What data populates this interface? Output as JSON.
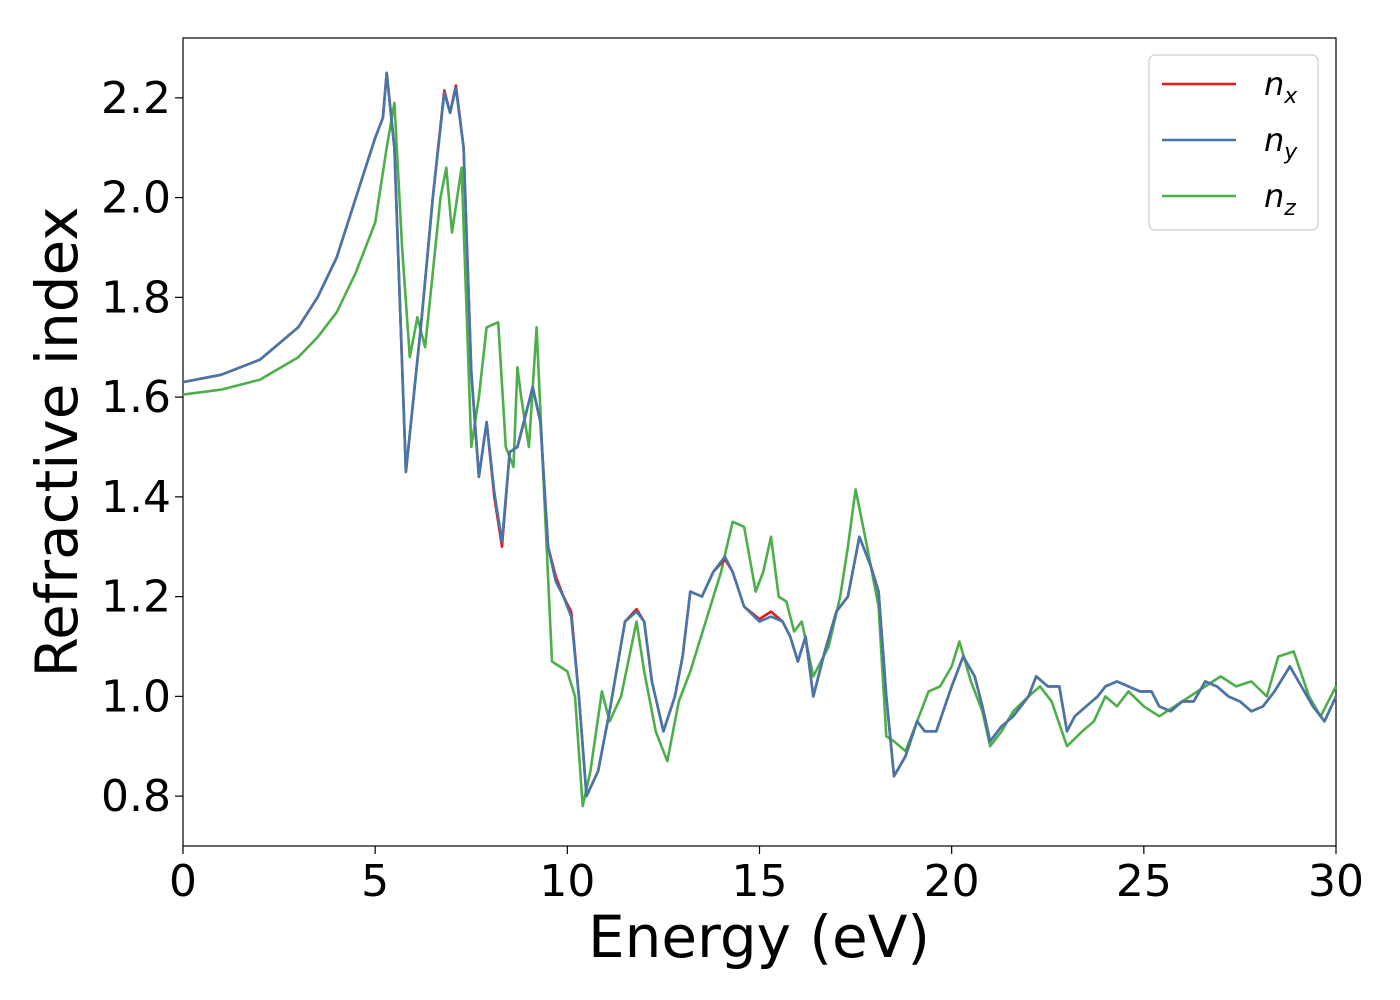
{
  "chart_data": {
    "type": "line",
    "xlabel": "Energy (eV)",
    "ylabel": "Refractive index",
    "xlim": [
      0,
      30
    ],
    "ylim": [
      0.7,
      2.32
    ],
    "xticks": [
      0,
      5,
      10,
      15,
      20,
      25,
      30
    ],
    "xtick_labels": [
      "0",
      "5",
      "10",
      "15",
      "20",
      "25",
      "30"
    ],
    "yticks": [
      0.8,
      1.0,
      1.2,
      1.4,
      1.6,
      1.8,
      2.0,
      2.2
    ],
    "ytick_labels": [
      "0.8",
      "1.0",
      "1.2",
      "1.4",
      "1.6",
      "1.8",
      "2.0",
      "2.2"
    ],
    "grid": false,
    "legend_position": "top-right",
    "series": [
      {
        "name": "n_x",
        "label_base": "n",
        "label_sub": "x",
        "color": "#e41a1c",
        "x": [
          0,
          1,
          2,
          3,
          3.5,
          4,
          4.5,
          5.0,
          5.2,
          5.3,
          5.5,
          5.8,
          6.0,
          6.2,
          6.5,
          6.8,
          6.95,
          7.1,
          7.3,
          7.5,
          7.7,
          7.9,
          8.1,
          8.3,
          8.5,
          8.7,
          8.9,
          9.1,
          9.3,
          9.5,
          9.7,
          9.9,
          10.1,
          10.3,
          10.5,
          10.8,
          11.1,
          11.5,
          11.8,
          12.0,
          12.2,
          12.5,
          12.8,
          13.0,
          13.2,
          13.5,
          13.8,
          14.1,
          14.3,
          14.6,
          15.0,
          15.3,
          15.6,
          15.8,
          16.0,
          16.2,
          16.4,
          16.7,
          17.0,
          17.3,
          17.6,
          17.9,
          18.1,
          18.3,
          18.5,
          18.8,
          19.1,
          19.3,
          19.6,
          20.0,
          20.3,
          20.6,
          20.8,
          21.0,
          21.3,
          21.6,
          22.0,
          22.2,
          22.5,
          22.8,
          23.0,
          23.2,
          23.5,
          23.8,
          24.0,
          24.3,
          24.6,
          24.9,
          25.2,
          25.4,
          25.7,
          26.0,
          26.3,
          26.6,
          26.9,
          27.2,
          27.5,
          27.8,
          28.1,
          28.4,
          28.8,
          29.1,
          29.4,
          29.7,
          30.0
        ],
        "y": [
          1.63,
          1.645,
          1.675,
          1.74,
          1.8,
          1.88,
          2.0,
          2.12,
          2.16,
          2.25,
          2.1,
          1.45,
          1.6,
          1.75,
          2.0,
          2.215,
          2.17,
          2.225,
          2.1,
          1.65,
          1.44,
          1.55,
          1.4,
          1.3,
          1.49,
          1.5,
          1.56,
          1.62,
          1.55,
          1.3,
          1.24,
          1.2,
          1.17,
          1.0,
          0.8,
          0.85,
          0.97,
          1.15,
          1.175,
          1.15,
          1.03,
          0.93,
          1.0,
          1.08,
          1.21,
          1.2,
          1.25,
          1.275,
          1.25,
          1.18,
          1.155,
          1.17,
          1.15,
          1.12,
          1.07,
          1.12,
          1.0,
          1.09,
          1.17,
          1.2,
          1.32,
          1.26,
          1.21,
          1.0,
          0.84,
          0.88,
          0.95,
          0.93,
          0.93,
          1.02,
          1.08,
          1.04,
          0.98,
          0.91,
          0.94,
          0.96,
          1.0,
          1.04,
          1.02,
          1.02,
          0.93,
          0.96,
          0.98,
          1.0,
          1.02,
          1.03,
          1.02,
          1.01,
          1.01,
          0.98,
          0.97,
          0.99,
          0.99,
          1.03,
          1.02,
          1.0,
          0.99,
          0.97,
          0.98,
          1.01,
          1.06,
          1.02,
          0.98,
          0.95,
          1.0
        ]
      },
      {
        "name": "n_y",
        "label_base": "n",
        "label_sub": "y",
        "color": "#4477aa",
        "x": [
          0,
          1,
          2,
          3,
          3.5,
          4,
          4.5,
          5.0,
          5.2,
          5.3,
          5.5,
          5.8,
          6.0,
          6.2,
          6.5,
          6.8,
          6.95,
          7.1,
          7.3,
          7.5,
          7.7,
          7.9,
          8.1,
          8.3,
          8.5,
          8.7,
          8.9,
          9.1,
          9.3,
          9.5,
          9.7,
          9.9,
          10.1,
          10.3,
          10.5,
          10.8,
          11.1,
          11.5,
          11.8,
          12.0,
          12.2,
          12.5,
          12.8,
          13.0,
          13.2,
          13.5,
          13.8,
          14.1,
          14.3,
          14.6,
          15.0,
          15.3,
          15.6,
          15.8,
          16.0,
          16.2,
          16.4,
          16.7,
          17.0,
          17.3,
          17.6,
          17.9,
          18.1,
          18.3,
          18.5,
          18.8,
          19.1,
          19.3,
          19.6,
          20.0,
          20.3,
          20.6,
          20.8,
          21.0,
          21.3,
          21.6,
          22.0,
          22.2,
          22.5,
          22.8,
          23.0,
          23.2,
          23.5,
          23.8,
          24.0,
          24.3,
          24.6,
          24.9,
          25.2,
          25.4,
          25.7,
          26.0,
          26.3,
          26.6,
          26.9,
          27.2,
          27.5,
          27.8,
          28.1,
          28.4,
          28.8,
          29.1,
          29.4,
          29.7,
          30.0
        ],
        "y": [
          1.63,
          1.645,
          1.675,
          1.74,
          1.8,
          1.88,
          2.0,
          2.12,
          2.16,
          2.25,
          2.1,
          1.45,
          1.6,
          1.75,
          2.0,
          2.21,
          2.17,
          2.22,
          2.1,
          1.65,
          1.44,
          1.55,
          1.41,
          1.31,
          1.49,
          1.5,
          1.56,
          1.62,
          1.55,
          1.3,
          1.23,
          1.2,
          1.16,
          1.0,
          0.8,
          0.85,
          0.97,
          1.15,
          1.17,
          1.15,
          1.03,
          0.93,
          1.0,
          1.08,
          1.21,
          1.2,
          1.25,
          1.28,
          1.25,
          1.18,
          1.15,
          1.16,
          1.15,
          1.12,
          1.07,
          1.12,
          1.0,
          1.09,
          1.17,
          1.2,
          1.32,
          1.26,
          1.21,
          1.0,
          0.84,
          0.88,
          0.95,
          0.93,
          0.93,
          1.02,
          1.08,
          1.04,
          0.98,
          0.91,
          0.94,
          0.96,
          1.0,
          1.04,
          1.02,
          1.02,
          0.93,
          0.96,
          0.98,
          1.0,
          1.02,
          1.03,
          1.02,
          1.01,
          1.01,
          0.98,
          0.97,
          0.99,
          0.99,
          1.03,
          1.02,
          1.0,
          0.99,
          0.97,
          0.98,
          1.01,
          1.06,
          1.02,
          0.98,
          0.95,
          1.0
        ]
      },
      {
        "name": "n_z",
        "label_base": "n",
        "label_sub": "z",
        "color": "#4daf4a",
        "x": [
          0,
          1,
          2,
          3,
          3.5,
          4,
          4.5,
          5.0,
          5.3,
          5.5,
          5.7,
          5.9,
          6.1,
          6.3,
          6.5,
          6.7,
          6.85,
          7.0,
          7.25,
          7.5,
          7.7,
          7.9,
          8.2,
          8.4,
          8.6,
          8.7,
          8.8,
          9.0,
          9.2,
          9.4,
          9.6,
          9.8,
          10.0,
          10.2,
          10.4,
          10.6,
          10.9,
          11.1,
          11.4,
          11.8,
          12.0,
          12.3,
          12.6,
          12.9,
          13.2,
          13.6,
          14.0,
          14.3,
          14.6,
          14.9,
          15.1,
          15.3,
          15.5,
          15.7,
          15.9,
          16.1,
          16.4,
          16.8,
          17.1,
          17.3,
          17.5,
          17.8,
          18.1,
          18.3,
          18.5,
          18.8,
          19.1,
          19.4,
          19.7,
          20.0,
          20.2,
          20.5,
          20.8,
          21.0,
          21.3,
          21.6,
          22.0,
          22.3,
          22.6,
          23.0,
          23.4,
          23.7,
          24.0,
          24.3,
          24.6,
          25.0,
          25.4,
          25.8,
          26.2,
          26.6,
          27.0,
          27.4,
          27.8,
          28.2,
          28.5,
          28.9,
          29.3,
          29.6,
          30.0
        ],
        "y": [
          1.605,
          1.615,
          1.635,
          1.68,
          1.72,
          1.77,
          1.85,
          1.95,
          2.1,
          2.19,
          1.9,
          1.68,
          1.76,
          1.7,
          1.85,
          2.0,
          2.06,
          1.93,
          2.06,
          1.5,
          1.6,
          1.74,
          1.75,
          1.5,
          1.46,
          1.66,
          1.6,
          1.5,
          1.74,
          1.4,
          1.07,
          1.06,
          1.05,
          1.0,
          0.78,
          0.85,
          1.01,
          0.95,
          1.0,
          1.15,
          1.05,
          0.93,
          0.87,
          0.99,
          1.05,
          1.15,
          1.25,
          1.35,
          1.34,
          1.21,
          1.25,
          1.32,
          1.2,
          1.19,
          1.13,
          1.15,
          1.04,
          1.1,
          1.2,
          1.3,
          1.415,
          1.3,
          1.18,
          0.92,
          0.91,
          0.89,
          0.95,
          1.01,
          1.02,
          1.06,
          1.11,
          1.03,
          0.97,
          0.9,
          0.93,
          0.97,
          1.0,
          1.02,
          0.99,
          0.9,
          0.93,
          0.95,
          1.0,
          0.98,
          1.01,
          0.98,
          0.96,
          0.98,
          1.0,
          1.02,
          1.04,
          1.02,
          1.03,
          1.0,
          1.08,
          1.09,
          1.0,
          0.96,
          1.02
        ]
      }
    ]
  }
}
